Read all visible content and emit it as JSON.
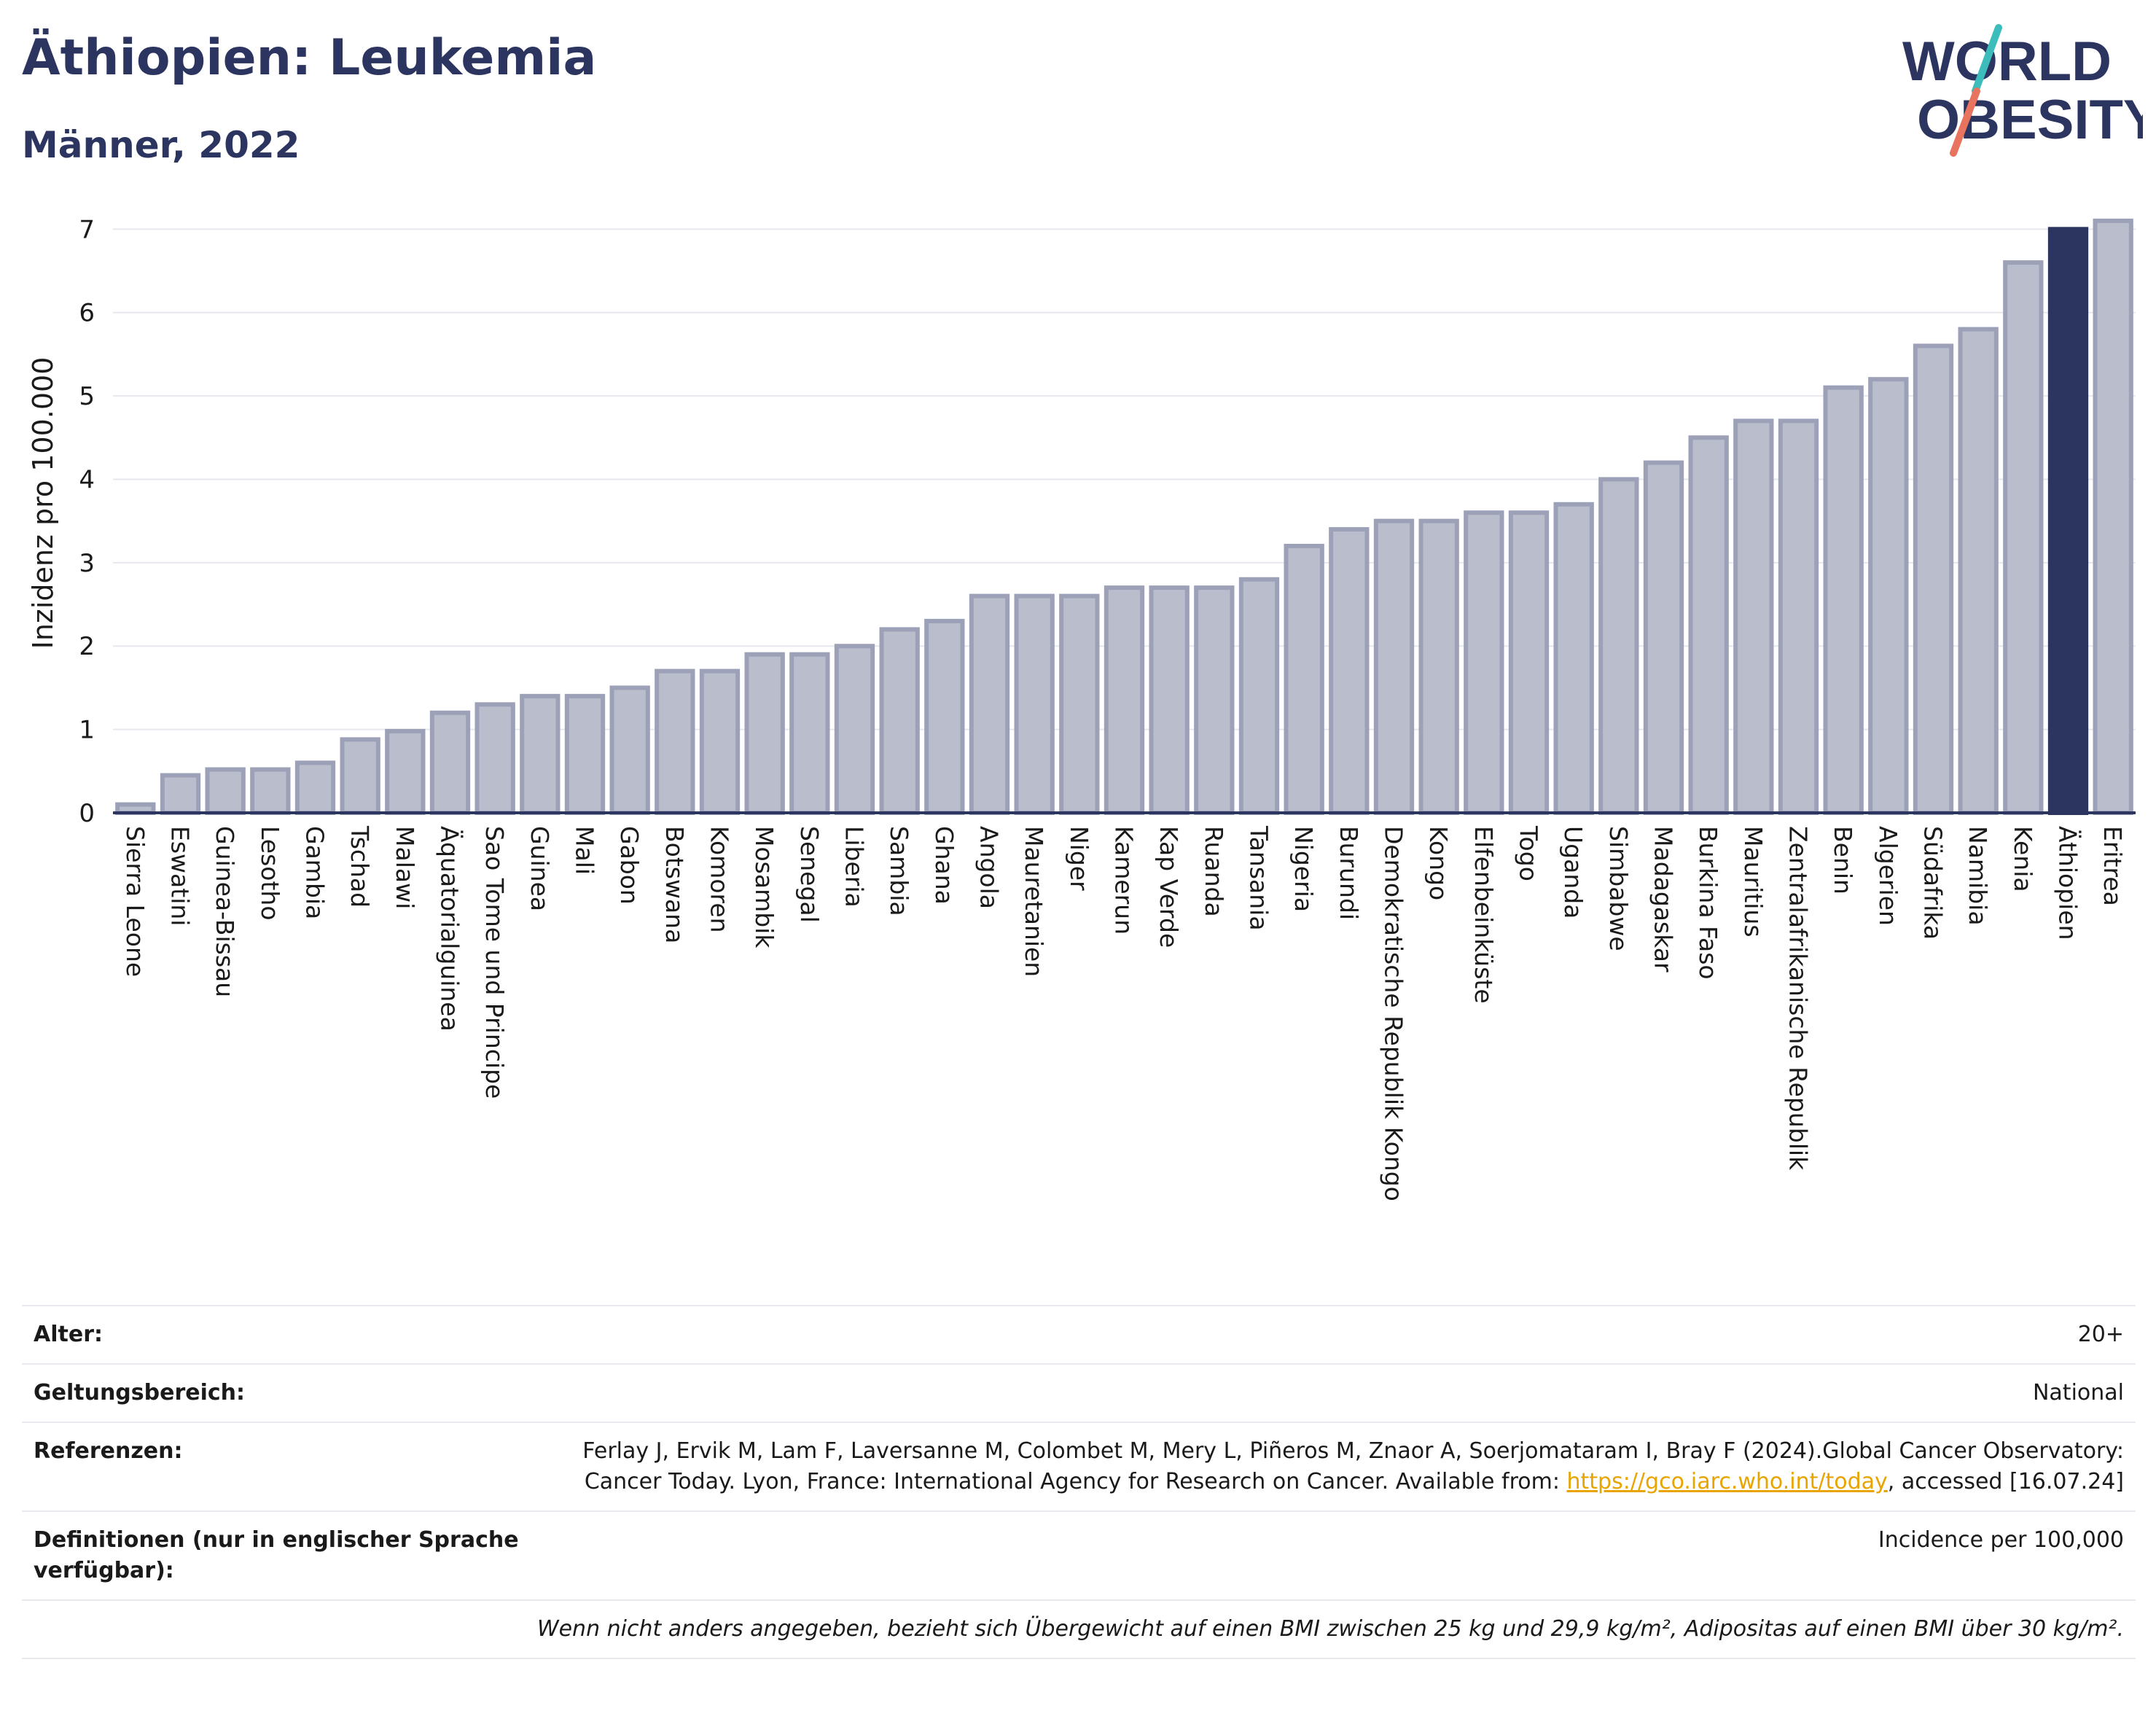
{
  "header": {
    "title": "Äthiopien: Leukemia",
    "subtitle": "Männer, 2022",
    "logo_line1": "WORLD",
    "logo_line2": "OBESITY"
  },
  "colors": {
    "bar": "#b9bdcc",
    "bar_stroke": "#9ca1b8",
    "highlight": "#2c3560",
    "title": "#2c3560",
    "logo_teal": "#3dbcbc",
    "logo_coral": "#e8735e"
  },
  "chart_data": {
    "type": "bar",
    "ylabel": "Inzidenz pro 100.000",
    "ylim": [
      0,
      7.3
    ],
    "yticks": [
      0,
      1,
      2,
      3,
      4,
      5,
      6,
      7
    ],
    "grid": true,
    "highlight_category": "Äthiopien",
    "categories": [
      "Sierra Leone",
      "Eswatini",
      "Guinea-Bissau",
      "Lesotho",
      "Gambia",
      "Tschad",
      "Malawi",
      "Äquatorialguinea",
      "Sao Tome und Principe",
      "Guinea",
      "Mali",
      "Gabon",
      "Botswana",
      "Komoren",
      "Mosambik",
      "Senegal",
      "Liberia",
      "Sambia",
      "Ghana",
      "Angola",
      "Mauretanien",
      "Niger",
      "Kamerun",
      "Kap Verde",
      "Ruanda",
      "Tansania",
      "Nigeria",
      "Burundi",
      "Demokratische Republik Kongo",
      "Kongo",
      "Elfenbeinküste",
      "Togo",
      "Uganda",
      "Simbabwe",
      "Madagaskar",
      "Burkina Faso",
      "Mauritius",
      "Zentralafrikanische Republik",
      "Benin",
      "Algerien",
      "Südafrika",
      "Namibia",
      "Kenia",
      "Äthiopien",
      "Eritrea"
    ],
    "values": [
      0.1,
      0.45,
      0.52,
      0.52,
      0.6,
      0.88,
      0.98,
      1.2,
      1.3,
      1.4,
      1.4,
      1.5,
      1.7,
      1.7,
      1.9,
      1.9,
      2.0,
      2.2,
      2.3,
      2.6,
      2.6,
      2.6,
      2.7,
      2.7,
      2.7,
      2.8,
      3.2,
      3.4,
      3.5,
      3.5,
      3.6,
      3.6,
      3.7,
      4.0,
      4.2,
      4.5,
      4.7,
      4.7,
      5.1,
      5.2,
      5.6,
      5.8,
      6.6,
      7.0,
      7.1
    ]
  },
  "info": {
    "age_label": "Alter:",
    "age_value": "20+",
    "scope_label": "Geltungsbereich:",
    "scope_value": "National",
    "ref_label": "Referenzen:",
    "ref_text_1": "Ferlay J, Ervik M, Lam F, Laversanne M, Colombet M, Mery L, Piñeros M, Znaor A, Soerjomataram I, Bray F (2024).Global Cancer Observatory: Cancer Today. Lyon, France: International Agency for Research on Cancer. Available from: ",
    "ref_link": "https://gco.iarc.who.int/today",
    "ref_text_2": ", accessed [16.07.24]",
    "def_label": "Definitionen (nur in englischer Sprache verfügbar):",
    "def_value": "Incidence per 100,000",
    "note": "Wenn nicht anders angegeben, bezieht sich Übergewicht auf einen BMI zwischen 25 kg und 29,9 kg/m², Adipositas auf einen BMI über 30 kg/m²."
  }
}
